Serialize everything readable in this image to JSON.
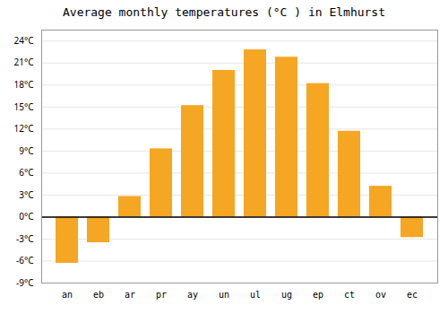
{
  "chart_data": {
    "type": "bar",
    "title": "Average monthly temperatures (°C ) in Elmhurst",
    "categories": [
      "an",
      "eb",
      "ar",
      "pr",
      "ay",
      "un",
      "ul",
      "ug",
      "ep",
      "ct",
      "ov",
      "ec"
    ],
    "values": [
      -6.3,
      -3.5,
      2.8,
      9.3,
      15.2,
      20.0,
      22.8,
      21.8,
      18.2,
      11.7,
      4.2,
      -2.8
    ],
    "color": "#F5A623",
    "ylim": [
      -9,
      25.5
    ],
    "yticks": [
      {
        "value": -9,
        "label": "-9°C"
      },
      {
        "value": -6,
        "label": "-6°C"
      },
      {
        "value": -3,
        "label": "-3°C"
      },
      {
        "value": 0,
        "label": "0°C"
      },
      {
        "value": 3,
        "label": "3°C"
      },
      {
        "value": 6,
        "label": "6°C"
      },
      {
        "value": 9,
        "label": "9°C"
      },
      {
        "value": 12,
        "label": "12°C"
      },
      {
        "value": 15,
        "label": "15°C"
      },
      {
        "value": 18,
        "label": "18°C"
      },
      {
        "value": 21,
        "label": "21°C"
      },
      {
        "value": 24,
        "label": "24°C"
      }
    ],
    "grid": true
  }
}
